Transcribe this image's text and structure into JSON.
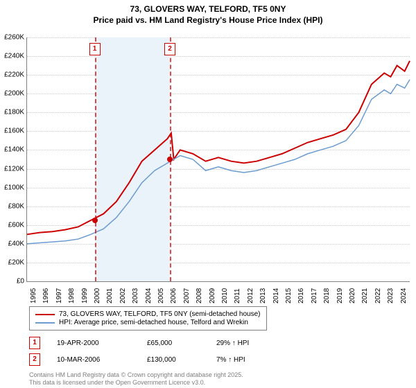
{
  "title_line1": "73, GLOVERS WAY, TELFORD, TF5 0NY",
  "title_line2": "Price paid vs. HM Land Registry's House Price Index (HPI)",
  "chart": {
    "type": "line",
    "background_color": "#ffffff",
    "grid_color": "#cccccc",
    "axis_color": "#808080",
    "ylim": [
      0,
      260000
    ],
    "ytick_step": 20000,
    "y_ticks": [
      "£0",
      "£20K",
      "£40K",
      "£60K",
      "£80K",
      "£100K",
      "£120K",
      "£140K",
      "£160K",
      "£180K",
      "£200K",
      "£220K",
      "£240K",
      "£260K"
    ],
    "x_years": [
      1995,
      1996,
      1997,
      1998,
      1999,
      2000,
      2001,
      2002,
      2003,
      2004,
      2005,
      2006,
      2007,
      2008,
      2009,
      2010,
      2011,
      2012,
      2013,
      2014,
      2015,
      2016,
      2017,
      2018,
      2019,
      2020,
      2021,
      2022,
      2023,
      2024
    ],
    "x_min": 1995,
    "x_max": 2025,
    "shaded_region_color": "#eaf2fa",
    "marker_line_color": "#cc0000",
    "series": [
      {
        "name": "property",
        "label": "73, GLOVERS WAY, TELFORD, TF5 0NY (semi-detached house)",
        "color": "#cc0000",
        "line_width": 2,
        "data": [
          [
            1995,
            50000
          ],
          [
            1996,
            52000
          ],
          [
            1997,
            53000
          ],
          [
            1998,
            55000
          ],
          [
            1999,
            58000
          ],
          [
            2000,
            65000
          ],
          [
            2001,
            72000
          ],
          [
            2002,
            85000
          ],
          [
            2003,
            105000
          ],
          [
            2004,
            128000
          ],
          [
            2005,
            140000
          ],
          [
            2006,
            152000
          ],
          [
            2006.3,
            158000
          ],
          [
            2006.5,
            130000
          ],
          [
            2007,
            140000
          ],
          [
            2008,
            136000
          ],
          [
            2009,
            128000
          ],
          [
            2010,
            132000
          ],
          [
            2011,
            128000
          ],
          [
            2012,
            126000
          ],
          [
            2013,
            128000
          ],
          [
            2014,
            132000
          ],
          [
            2015,
            136000
          ],
          [
            2016,
            142000
          ],
          [
            2017,
            148000
          ],
          [
            2018,
            152000
          ],
          [
            2019,
            156000
          ],
          [
            2020,
            162000
          ],
          [
            2021,
            180000
          ],
          [
            2022,
            210000
          ],
          [
            2023,
            222000
          ],
          [
            2023.5,
            218000
          ],
          [
            2024,
            230000
          ],
          [
            2024.6,
            224000
          ],
          [
            2025,
            235000
          ]
        ]
      },
      {
        "name": "hpi",
        "label": "HPI: Average price, semi-detached house, Telford and Wrekin",
        "color": "#6a9bd1",
        "line_width": 1.5,
        "data": [
          [
            1995,
            40000
          ],
          [
            1996,
            41000
          ],
          [
            1997,
            42000
          ],
          [
            1998,
            43000
          ],
          [
            1999,
            45000
          ],
          [
            2000,
            50000
          ],
          [
            2001,
            56000
          ],
          [
            2002,
            68000
          ],
          [
            2003,
            85000
          ],
          [
            2004,
            105000
          ],
          [
            2005,
            118000
          ],
          [
            2006,
            126000
          ],
          [
            2007,
            134000
          ],
          [
            2008,
            130000
          ],
          [
            2009,
            118000
          ],
          [
            2010,
            122000
          ],
          [
            2011,
            118000
          ],
          [
            2012,
            116000
          ],
          [
            2013,
            118000
          ],
          [
            2014,
            122000
          ],
          [
            2015,
            126000
          ],
          [
            2016,
            130000
          ],
          [
            2017,
            136000
          ],
          [
            2018,
            140000
          ],
          [
            2019,
            144000
          ],
          [
            2020,
            150000
          ],
          [
            2021,
            166000
          ],
          [
            2022,
            194000
          ],
          [
            2023,
            204000
          ],
          [
            2023.5,
            200000
          ],
          [
            2024,
            210000
          ],
          [
            2024.6,
            206000
          ],
          [
            2025,
            215000
          ]
        ]
      }
    ],
    "markers": [
      {
        "n": "1",
        "year": 2000.3,
        "dot_value": 65000
      },
      {
        "n": "2",
        "year": 2006.2,
        "dot_value": 130000
      }
    ],
    "shaded_period": {
      "from": 2000.3,
      "to": 2006.2
    }
  },
  "legend": {
    "row1": "73, GLOVERS WAY, TELFORD, TF5 0NY (semi-detached house)",
    "row2": "HPI: Average price, semi-detached house, Telford and Wrekin"
  },
  "transactions": [
    {
      "n": "1",
      "date": "19-APR-2000",
      "price": "£65,000",
      "pct": "29% ↑ HPI"
    },
    {
      "n": "2",
      "date": "10-MAR-2006",
      "price": "£130,000",
      "pct": "7% ↑ HPI"
    }
  ],
  "footer_line1": "Contains HM Land Registry data © Crown copyright and database right 2025.",
  "footer_line2": "This data is licensed under the Open Government Licence v3.0."
}
